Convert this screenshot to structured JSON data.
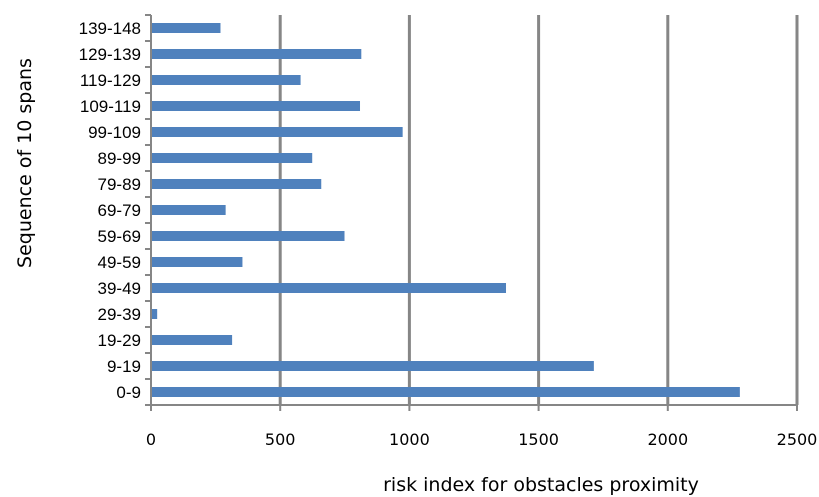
{
  "chart_data": {
    "type": "bar",
    "orientation": "horizontal",
    "categories": [
      "0-9",
      "9-19",
      "19-29",
      "29-39",
      "39-49",
      "49-59",
      "59-69",
      "69-79",
      "79-89",
      "89-99",
      "99-109",
      "109-119",
      "119-129",
      "129-139",
      "139-148"
    ],
    "values": [
      2275,
      1710,
      310,
      20,
      1370,
      350,
      745,
      285,
      655,
      620,
      970,
      805,
      575,
      810,
      265
    ],
    "xlabel": "risk index for obstacles proximity",
    "ylabel": "Sequence of 10 spans",
    "xlim": [
      0,
      2500
    ],
    "xticks": [
      "0",
      "500",
      "1000",
      "1500",
      "2000",
      "2500"
    ],
    "grid": "vertical",
    "legend": "none",
    "bar_color": "#4f81bd",
    "grid_color": "#868686"
  }
}
